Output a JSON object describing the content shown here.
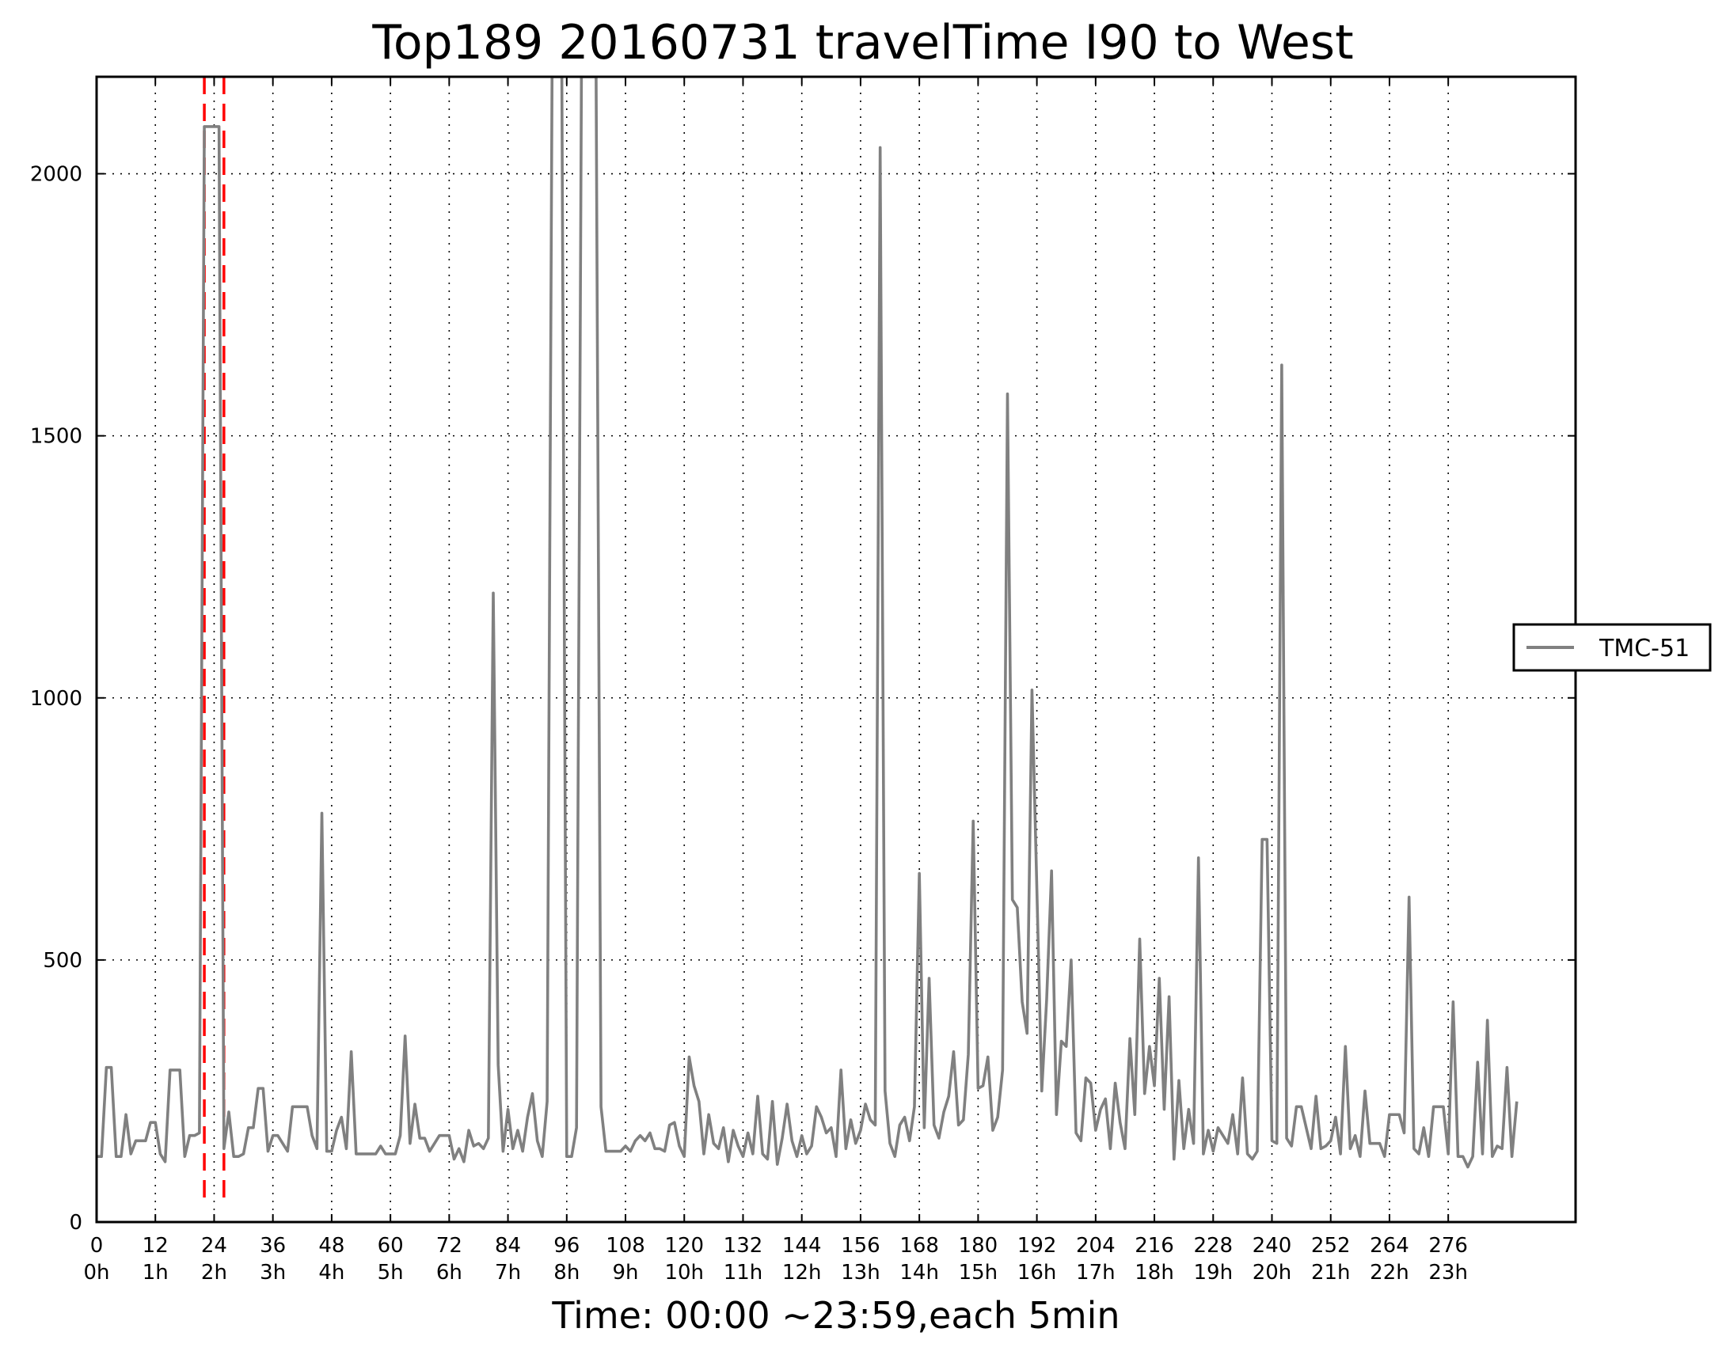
{
  "chart_data": {
    "type": "line",
    "title": "Top189 20160731 travelTime I90 to West",
    "xlabel": "Time: 00:00 ~23:59,each 5min",
    "ylabel": "",
    "xlim": [
      0,
      302
    ],
    "ylim": [
      0,
      2185
    ],
    "grid": true,
    "legend_position": "right",
    "x_ticks": [
      0,
      12,
      24,
      36,
      48,
      60,
      72,
      84,
      96,
      108,
      120,
      132,
      144,
      156,
      168,
      180,
      192,
      204,
      216,
      228,
      240,
      252,
      264,
      276
    ],
    "x_tick_labels": [
      "0",
      "12",
      "24",
      "36",
      "48",
      "60",
      "72",
      "84",
      "96",
      "108",
      "120",
      "132",
      "144",
      "156",
      "168",
      "180",
      "192",
      "204",
      "216",
      "228",
      "240",
      "252",
      "264",
      "276"
    ],
    "x_tick_sublabels": [
      "0h",
      "1h",
      "2h",
      "3h",
      "4h",
      "5h",
      "6h",
      "7h",
      "8h",
      "9h",
      "10h",
      "11h",
      "12h",
      "13h",
      "14h",
      "15h",
      "16h",
      "17h",
      "18h",
      "19h",
      "20h",
      "21h",
      "22h",
      "23h"
    ],
    "y_ticks": [
      0,
      500,
      1000,
      1500,
      2000
    ],
    "y_tick_labels": [
      "0",
      "500",
      "1000",
      "1500",
      "2000"
    ],
    "highlight_lines": {
      "x": [
        22,
        26
      ],
      "color": "#ff0000",
      "style": "dashed"
    },
    "series": [
      {
        "name": "TMC-51",
        "color": "#808080",
        "values": [
          125,
          125,
          295,
          295,
          125,
          125,
          205,
          130,
          155,
          155,
          155,
          190,
          190,
          130,
          115,
          290,
          290,
          290,
          125,
          165,
          165,
          170,
          2090,
          2090,
          2090,
          2090,
          140,
          210,
          125,
          125,
          130,
          180,
          180,
          255,
          255,
          135,
          165,
          165,
          150,
          135,
          220,
          220,
          220,
          220,
          165,
          140,
          780,
          135,
          135,
          175,
          200,
          140,
          325,
          130,
          130,
          130,
          130,
          130,
          145,
          130,
          130,
          130,
          165,
          355,
          150,
          225,
          160,
          160,
          135,
          150,
          165,
          165,
          165,
          120,
          140,
          115,
          175,
          145,
          150,
          140,
          160,
          1200,
          300,
          135,
          215,
          140,
          175,
          135,
          200,
          245,
          155,
          125,
          230,
          2185,
          2185,
          2185,
          125,
          125,
          180,
          2185,
          2185,
          2185,
          2185,
          220,
          135,
          135,
          135,
          135,
          145,
          135,
          155,
          165,
          155,
          170,
          140,
          140,
          135,
          185,
          190,
          145,
          125,
          315,
          260,
          230,
          130,
          205,
          150,
          140,
          180,
          115,
          175,
          145,
          125,
          170,
          130,
          240,
          130,
          120,
          230,
          110,
          160,
          225,
          155,
          125,
          165,
          130,
          145,
          220,
          200,
          170,
          180,
          125,
          290,
          140,
          195,
          150,
          175,
          225,
          195,
          185,
          2050,
          250,
          150,
          125,
          185,
          200,
          155,
          220,
          665,
          180,
          465,
          185,
          160,
          210,
          240,
          325,
          185,
          195,
          320,
          765,
          255,
          260,
          315,
          175,
          200,
          290,
          1580,
          615,
          600,
          420,
          360,
          1015,
          635,
          250,
          425,
          670,
          205,
          345,
          335,
          500,
          170,
          155,
          275,
          265,
          175,
          215,
          235,
          140,
          265,
          190,
          140,
          350,
          205,
          540,
          245,
          335,
          260,
          465,
          215,
          430,
          120,
          270,
          140,
          215,
          150,
          695,
          130,
          175,
          135,
          180,
          165,
          150,
          205,
          130,
          275,
          130,
          120,
          135,
          730,
          730,
          155,
          150,
          1635,
          160,
          145,
          220,
          220,
          180,
          140,
          240,
          140,
          145,
          155,
          200,
          130,
          335,
          140,
          165,
          125,
          250,
          150,
          150,
          150,
          125,
          205,
          205,
          205,
          170,
          620,
          140,
          130,
          180,
          125,
          220,
          220,
          220,
          130,
          420,
          125,
          125,
          105,
          125,
          305,
          130,
          385,
          125,
          145,
          140,
          295,
          125,
          230
        ]
      }
    ]
  }
}
